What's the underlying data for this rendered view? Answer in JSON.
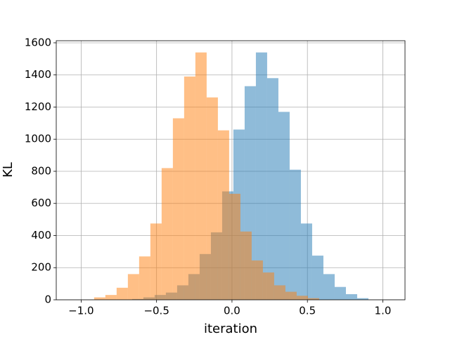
{
  "chart_data": {
    "type": "histogram",
    "xlabel": "iteration",
    "ylabel": "KL",
    "xlim": [
      -1.165,
      1.147
    ],
    "ylim": [
      0,
      1613
    ],
    "xticks": [
      {
        "value": -1.0,
        "label": "−1.0"
      },
      {
        "value": -0.5,
        "label": "−0.5"
      },
      {
        "value": 0.0,
        "label": "0.0"
      },
      0.5,
      {
        "value": 1.0,
        "label": "1.0"
      }
    ],
    "yticks": [
      0,
      200,
      400,
      600,
      800,
      1000,
      1200,
      1400,
      1600
    ],
    "grid": true,
    "series": [
      {
        "color": "#1f77b4",
        "opacity": 0.5,
        "bins": [
          -0.662,
          -0.5874,
          -0.5128,
          -0.4382,
          -0.3636,
          -0.289,
          -0.2144,
          -0.1398,
          -0.0652,
          0.0093,
          0.0839,
          0.1585,
          0.2331,
          0.3077,
          0.3823,
          0.4569,
          0.5315,
          0.6061,
          0.6807,
          0.7553,
          0.8299,
          0.9045
        ],
        "values": [
          5,
          15,
          30,
          45,
          90,
          160,
          285,
          420,
          675,
          1060,
          1330,
          1540,
          1380,
          1170,
          810,
          475,
          275,
          160,
          80,
          35,
          10
        ]
      },
      {
        "color": "#ff7f0e",
        "opacity": 0.5,
        "bins": [
          -0.914,
          -0.8394,
          -0.7648,
          -0.6902,
          -0.6156,
          -0.541,
          -0.4664,
          -0.3918,
          -0.3172,
          -0.2426,
          -0.168,
          -0.0934,
          -0.0188,
          0.0558,
          0.1304,
          0.205,
          0.2796,
          0.3542,
          0.4288,
          0.5034,
          0.578
        ],
        "values": [
          15,
          30,
          75,
          160,
          270,
          475,
          820,
          1130,
          1390,
          1540,
          1260,
          1055,
          660,
          425,
          245,
          170,
          90,
          50,
          25,
          10
        ]
      }
    ]
  }
}
